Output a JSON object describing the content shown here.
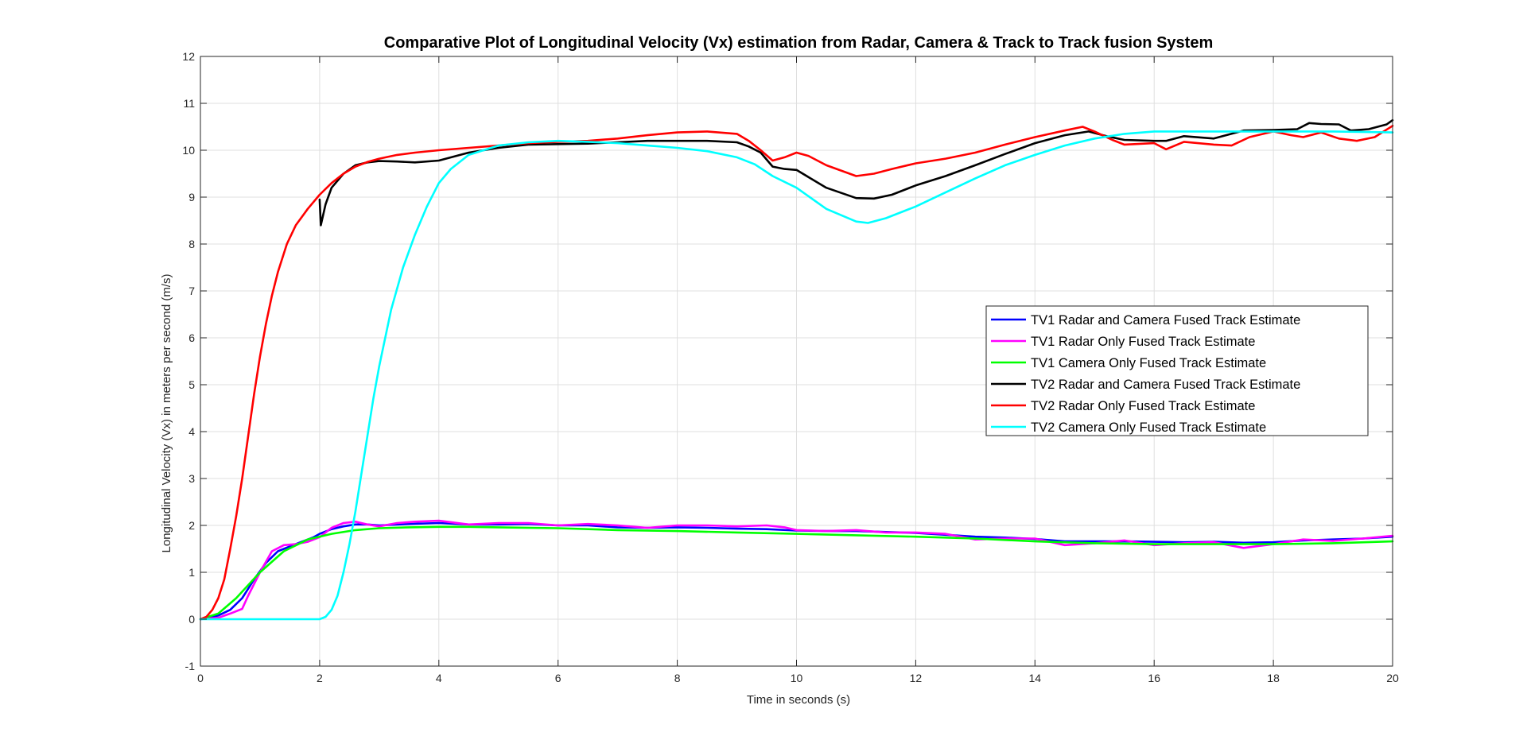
{
  "chart_data": {
    "type": "line",
    "title": "Comparative Plot of Longitudinal Velocity (Vx) estimation from Radar, Camera & Track to Track fusion System",
    "xlabel": "Time in seconds (s)",
    "ylabel": "Longitudinal Velocity (Vx) in meters per second (m/s)",
    "xlim": [
      0,
      20
    ],
    "ylim": [
      -1,
      12
    ],
    "xticks": [
      "0",
      "2",
      "4",
      "6",
      "8",
      "10",
      "12",
      "14",
      "16",
      "18",
      "20"
    ],
    "yticks": [
      "-1",
      "0",
      "1",
      "2",
      "3",
      "4",
      "5",
      "6",
      "7",
      "8",
      "9",
      "10",
      "11",
      "12"
    ],
    "grid": true,
    "legend_position": "right-center",
    "series": [
      {
        "name": "TV1 Radar and Camera Fused Track Estimate",
        "color": "#0000ff",
        "x": [
          0,
          0.3,
          0.5,
          0.7,
          0.9,
          1.1,
          1.3,
          1.5,
          1.7,
          1.9,
          2.0,
          2.2,
          2.4,
          2.6,
          2.8,
          3.0,
          3.5,
          4.0,
          4.5,
          5.0,
          5.5,
          6.0,
          6.5,
          7.0,
          7.5,
          8.0,
          8.5,
          9.0,
          9.5,
          10.0,
          10.5,
          11.0,
          11.5,
          12.0,
          12.5,
          13.0,
          13.5,
          14.0,
          14.5,
          15.0,
          15.5,
          16.0,
          16.5,
          17.0,
          17.5,
          18.0,
          18.5,
          19.0,
          19.5,
          20.0
        ],
        "y": [
          0,
          0.08,
          0.2,
          0.45,
          0.85,
          1.2,
          1.45,
          1.55,
          1.65,
          1.75,
          1.82,
          1.92,
          1.98,
          2.02,
          2.02,
          2.0,
          2.03,
          2.05,
          2.02,
          2.02,
          2.03,
          2.0,
          2.0,
          1.96,
          1.95,
          1.96,
          1.95,
          1.93,
          1.92,
          1.89,
          1.88,
          1.88,
          1.86,
          1.84,
          1.8,
          1.76,
          1.74,
          1.71,
          1.66,
          1.66,
          1.66,
          1.65,
          1.64,
          1.65,
          1.63,
          1.64,
          1.68,
          1.7,
          1.72,
          1.76
        ]
      },
      {
        "name": "TV1 Radar Only Fused Track Estimate",
        "color": "#ff00ff",
        "x": [
          0,
          0.3,
          0.5,
          0.7,
          0.8,
          1.0,
          1.2,
          1.4,
          1.6,
          1.8,
          2.0,
          2.2,
          2.4,
          2.6,
          2.8,
          3.0,
          3.3,
          3.6,
          4.0,
          4.5,
          5.0,
          5.5,
          6.0,
          6.5,
          7.0,
          7.5,
          8.0,
          8.5,
          9.0,
          9.5,
          9.8,
          10.0,
          10.5,
          11.0,
          11.5,
          12.0,
          12.5,
          13.0,
          13.5,
          14.0,
          14.5,
          15.0,
          15.5,
          16.0,
          16.5,
          17.0,
          17.5,
          18.0,
          18.5,
          19.0,
          19.5,
          20.0
        ],
        "y": [
          0,
          0.03,
          0.12,
          0.22,
          0.5,
          1.0,
          1.45,
          1.58,
          1.6,
          1.65,
          1.75,
          1.95,
          2.05,
          2.08,
          2.02,
          1.98,
          2.05,
          2.08,
          2.1,
          2.02,
          2.05,
          2.05,
          2.0,
          2.03,
          2.0,
          1.95,
          2.0,
          2.0,
          1.98,
          2.0,
          1.96,
          1.9,
          1.88,
          1.9,
          1.85,
          1.85,
          1.82,
          1.7,
          1.72,
          1.72,
          1.58,
          1.62,
          1.68,
          1.58,
          1.62,
          1.64,
          1.52,
          1.6,
          1.7,
          1.67,
          1.72,
          1.78
        ]
      },
      {
        "name": "TV1 Camera Only Fused Track Estimate",
        "color": "#00ff00",
        "x": [
          0,
          0.3,
          0.6,
          1.0,
          1.4,
          1.8,
          2.2,
          2.6,
          3.0,
          3.5,
          4.0,
          4.5,
          5.0,
          6.0,
          7.0,
          8.0,
          9.0,
          10.0,
          11.0,
          12.0,
          13.0,
          14.0,
          15.0,
          16.0,
          17.0,
          18.0,
          19.0,
          20.0
        ],
        "y": [
          0,
          0.12,
          0.45,
          1.0,
          1.45,
          1.7,
          1.82,
          1.9,
          1.94,
          1.96,
          1.97,
          1.97,
          1.96,
          1.94,
          1.9,
          1.88,
          1.85,
          1.82,
          1.79,
          1.76,
          1.72,
          1.66,
          1.62,
          1.6,
          1.6,
          1.6,
          1.62,
          1.66
        ]
      },
      {
        "name": "TV2 Radar and Camera Fused Track Estimate",
        "color": "#000000",
        "x": [
          2.0,
          2.02,
          2.1,
          2.2,
          2.4,
          2.6,
          2.8,
          3.0,
          3.3,
          3.6,
          4.0,
          4.5,
          5.0,
          5.5,
          6.0,
          6.5,
          7.0,
          7.5,
          8.0,
          8.5,
          9.0,
          9.2,
          9.4,
          9.6,
          9.8,
          10.0,
          10.5,
          11.0,
          11.3,
          11.6,
          12.0,
          12.5,
          13.0,
          13.5,
          14.0,
          14.5,
          14.9,
          15.2,
          15.5,
          16.0,
          16.2,
          16.5,
          17.0,
          17.5,
          18.0,
          18.4,
          18.6,
          18.8,
          19.1,
          19.3,
          19.6,
          19.9,
          20.0
        ],
        "y": [
          8.95,
          8.4,
          8.85,
          9.2,
          9.5,
          9.68,
          9.74,
          9.77,
          9.76,
          9.74,
          9.78,
          9.95,
          10.05,
          10.12,
          10.13,
          10.14,
          10.17,
          10.2,
          10.2,
          10.2,
          10.17,
          10.08,
          9.95,
          9.65,
          9.6,
          9.58,
          9.2,
          8.98,
          8.97,
          9.05,
          9.25,
          9.45,
          9.68,
          9.92,
          10.15,
          10.32,
          10.4,
          10.3,
          10.22,
          10.2,
          10.2,
          10.3,
          10.25,
          10.42,
          10.43,
          10.45,
          10.58,
          10.56,
          10.55,
          10.42,
          10.45,
          10.55,
          10.64
        ]
      },
      {
        "name": "TV2 Radar Only Fused Track Estimate",
        "color": "#ff0000",
        "x": [
          0,
          0.1,
          0.2,
          0.3,
          0.4,
          0.5,
          0.6,
          0.7,
          0.8,
          0.9,
          1.0,
          1.1,
          1.2,
          1.3,
          1.45,
          1.6,
          1.8,
          2.0,
          2.2,
          2.4,
          2.6,
          2.8,
          3.0,
          3.3,
          3.6,
          4.0,
          4.5,
          5.0,
          5.5,
          6.0,
          6.5,
          7.0,
          7.5,
          8.0,
          8.5,
          9.0,
          9.2,
          9.4,
          9.6,
          9.8,
          10.0,
          10.2,
          10.5,
          11.0,
          11.3,
          11.6,
          12.0,
          12.5,
          13.0,
          13.5,
          14.0,
          14.5,
          14.8,
          15.0,
          15.3,
          15.5,
          16.0,
          16.2,
          16.5,
          17.0,
          17.3,
          17.6,
          18.0,
          18.3,
          18.5,
          18.8,
          19.1,
          19.4,
          19.7,
          20.0
        ],
        "y": [
          0,
          0.05,
          0.2,
          0.45,
          0.85,
          1.5,
          2.2,
          3.0,
          3.9,
          4.8,
          5.6,
          6.3,
          6.9,
          7.4,
          8.0,
          8.4,
          8.75,
          9.05,
          9.3,
          9.5,
          9.65,
          9.75,
          9.82,
          9.9,
          9.95,
          10.0,
          10.05,
          10.1,
          10.15,
          10.18,
          10.2,
          10.25,
          10.32,
          10.38,
          10.4,
          10.35,
          10.2,
          10.0,
          9.78,
          9.85,
          9.95,
          9.88,
          9.68,
          9.45,
          9.5,
          9.6,
          9.72,
          9.82,
          9.95,
          10.12,
          10.28,
          10.42,
          10.5,
          10.4,
          10.22,
          10.12,
          10.15,
          10.02,
          10.18,
          10.12,
          10.1,
          10.28,
          10.4,
          10.32,
          10.28,
          10.38,
          10.25,
          10.2,
          10.28,
          10.52
        ]
      },
      {
        "name": "TV2 Camera Only Fused Track Estimate",
        "color": "#00ffff",
        "x": [
          0,
          2.0,
          2.1,
          2.2,
          2.3,
          2.4,
          2.5,
          2.6,
          2.7,
          2.8,
          2.9,
          3.0,
          3.2,
          3.4,
          3.6,
          3.8,
          4.0,
          4.2,
          4.5,
          5.0,
          5.5,
          6.0,
          6.5,
          7.0,
          7.5,
          8.0,
          8.5,
          9.0,
          9.3,
          9.6,
          10.0,
          10.5,
          11.0,
          11.2,
          11.5,
          12.0,
          12.5,
          13.0,
          13.5,
          14.0,
          14.5,
          15.0,
          15.5,
          16.0,
          16.5,
          17.0,
          17.5,
          18.0,
          19.0,
          20.0
        ],
        "y": [
          0,
          0,
          0.05,
          0.2,
          0.5,
          1.0,
          1.6,
          2.3,
          3.1,
          3.9,
          4.7,
          5.4,
          6.6,
          7.5,
          8.2,
          8.8,
          9.3,
          9.6,
          9.9,
          10.1,
          10.17,
          10.2,
          10.18,
          10.15,
          10.1,
          10.05,
          9.98,
          9.85,
          9.7,
          9.45,
          9.2,
          8.75,
          8.48,
          8.45,
          8.55,
          8.8,
          9.1,
          9.4,
          9.68,
          9.9,
          10.1,
          10.25,
          10.35,
          10.4,
          10.4,
          10.4,
          10.4,
          10.4,
          10.4,
          10.38
        ]
      }
    ]
  }
}
